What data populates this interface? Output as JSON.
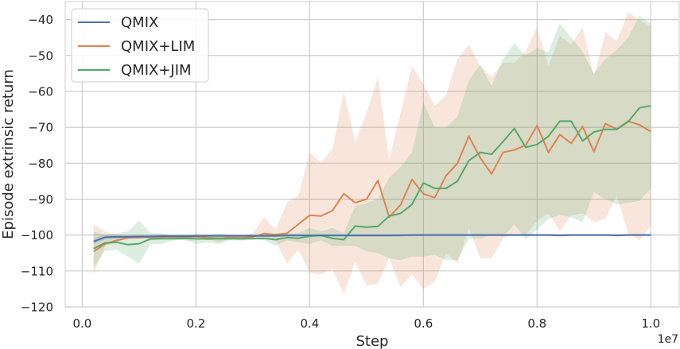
{
  "chart_data": {
    "type": "line",
    "title": "",
    "xlabel": "Step",
    "ylabel": "Episode extrinsic return",
    "x_offset_label": "1e7",
    "xlim": [
      -0.03,
      1.05
    ],
    "ylim": [
      -120,
      -35
    ],
    "xticks": [
      0.0,
      0.2,
      0.4,
      0.6,
      0.8,
      1.0
    ],
    "xtick_labels": [
      "0.0",
      "0.2",
      "0.4",
      "0.6",
      "0.8",
      "1.0"
    ],
    "yticks": [
      -120,
      -110,
      -100,
      -90,
      -80,
      -70,
      -60,
      -50,
      -40
    ],
    "ytick_labels": [
      "−120",
      "−110",
      "−100",
      "−90",
      "−80",
      "−70",
      "−60",
      "−50",
      "−40"
    ],
    "grid": true,
    "legend_position": "top-left",
    "x": [
      0.02,
      0.04,
      0.06,
      0.08,
      0.1,
      0.12,
      0.14,
      0.16,
      0.18,
      0.2,
      0.22,
      0.24,
      0.26,
      0.28,
      0.3,
      0.32,
      0.34,
      0.36,
      0.38,
      0.4,
      0.42,
      0.44,
      0.46,
      0.48,
      0.5,
      0.52,
      0.54,
      0.56,
      0.58,
      0.6,
      0.62,
      0.64,
      0.66,
      0.68,
      0.7,
      0.72,
      0.74,
      0.76,
      0.78,
      0.8,
      0.82,
      0.84,
      0.86,
      0.88,
      0.9,
      0.92,
      0.94,
      0.96,
      0.98,
      1.0
    ],
    "series": [
      {
        "name": "QMIX",
        "color": "#4c72b0",
        "values": [
          -101.8,
          -100.6,
          -100.5,
          -100.5,
          -100.4,
          -100.4,
          -100.3,
          -100.3,
          -100.3,
          -100.3,
          -100.2,
          -100.2,
          -100.2,
          -100.2,
          -100.2,
          -100.2,
          -100.2,
          -100.1,
          -100.1,
          -100.1,
          -100.1,
          -100.1,
          -100.1,
          -100.1,
          -100.1,
          -100.1,
          -100.1,
          -100.1,
          -100.0,
          -100.0,
          -100.0,
          -100.0,
          -100.0,
          -100.0,
          -100.0,
          -100.0,
          -100.0,
          -100.0,
          -100.0,
          -100.0,
          -100.0,
          -100.1,
          -100.0,
          -100.0,
          -100.0,
          -100.0,
          -100.1,
          -100.0,
          -100.0,
          -100.0
        ],
        "lower": [
          -102.5,
          -101.2,
          -101.0,
          -101.0,
          -100.9,
          -100.8,
          -100.7,
          -100.7,
          -100.6,
          -100.6,
          -100.5,
          -100.5,
          -100.5,
          -100.5,
          -100.5,
          -100.5,
          -100.5,
          -100.4,
          -100.4,
          -100.4,
          -100.4,
          -100.4,
          -100.4,
          -100.4,
          -100.4,
          -100.4,
          -100.4,
          -100.3,
          -100.3,
          -100.3,
          -100.3,
          -100.3,
          -100.3,
          -100.3,
          -100.3,
          -100.3,
          -100.3,
          -100.3,
          -100.3,
          -100.3,
          -100.3,
          -100.3,
          -100.3,
          -100.3,
          -100.3,
          -100.3,
          -100.3,
          -100.3,
          -100.3,
          -100.3
        ],
        "upper": [
          -101.0,
          -100.0,
          -100.0,
          -100.0,
          -99.9,
          -99.9,
          -99.9,
          -99.9,
          -99.9,
          -99.9,
          -99.9,
          -99.9,
          -99.9,
          -99.9,
          -99.9,
          -99.9,
          -99.9,
          -99.8,
          -99.8,
          -99.8,
          -99.8,
          -99.8,
          -99.8,
          -99.8,
          -99.8,
          -99.8,
          -99.8,
          -99.7,
          -99.7,
          -99.7,
          -99.7,
          -99.7,
          -99.7,
          -99.7,
          -99.7,
          -99.7,
          -99.7,
          -99.7,
          -99.7,
          -99.7,
          -99.7,
          -99.7,
          -99.7,
          -99.7,
          -99.7,
          -99.7,
          -99.7,
          -99.7,
          -99.7,
          -99.7
        ]
      },
      {
        "name": "QMIX+LIM",
        "color": "#dd8452",
        "values": [
          -104.6,
          -102.5,
          -101.5,
          -100.8,
          -100.7,
          -100.6,
          -100.6,
          -100.5,
          -100.6,
          -100.4,
          -100.7,
          -100.9,
          -100.7,
          -100.8,
          -100.5,
          -99.6,
          -99.9,
          -99.5,
          -97.0,
          -94.5,
          -94.7,
          -93.2,
          -88.5,
          -91.0,
          -90.0,
          -84.8,
          -95.0,
          -91.6,
          -84.5,
          -88.5,
          -89.6,
          -83.5,
          -80.0,
          -72.5,
          -78.5,
          -83.0,
          -77.0,
          -76.3,
          -75.0,
          -69.5,
          -77.0,
          -72.0,
          -74.5,
          -69.8,
          -76.8,
          -69.0,
          -70.5,
          -68.3,
          -69.3,
          -71.2
        ],
        "lower": [
          -111.0,
          -103.0,
          -102.0,
          -101.0,
          -101.0,
          -101.0,
          -101.0,
          -101.0,
          -101.5,
          -101.5,
          -101.0,
          -102.0,
          -101.0,
          -101.5,
          -101.0,
          -100.5,
          -101.5,
          -108.0,
          -104.0,
          -110.5,
          -111.0,
          -109.5,
          -116.5,
          -107.5,
          -114.0,
          -113.5,
          -106.5,
          -114.5,
          -111.0,
          -115.0,
          -113.0,
          -105.0,
          -108.0,
          -98.0,
          -106.5,
          -106.5,
          -101.0,
          -99.5,
          -100.0,
          -96.0,
          -94.0,
          -99.0,
          -94.5,
          -94.0,
          -96.5,
          -95.5,
          -89.0,
          -99.5,
          -101.5,
          -97.5
        ],
        "upper": [
          -97.0,
          -99.0,
          -100.0,
          -100.5,
          -100.2,
          -100.2,
          -100.2,
          -100.2,
          -100.0,
          -100.0,
          -100.0,
          -100.0,
          -100.0,
          -100.3,
          -99.5,
          -95.0,
          -98.5,
          -91.0,
          -89.0,
          -77.0,
          -80.0,
          -76.0,
          -60.0,
          -74.0,
          -66.0,
          -56.0,
          -79.0,
          -66.0,
          -53.0,
          -58.0,
          -64.0,
          -61.0,
          -51.0,
          -47.0,
          -53.0,
          -56.0,
          -52.0,
          -52.0,
          -49.0,
          -42.0,
          -53.0,
          -44.5,
          -47.0,
          -42.0,
          -56.0,
          -43.5,
          -46.0,
          -38.0,
          -40.0,
          -42.0
        ]
      },
      {
        "name": "QMIX+JIM",
        "color": "#55a868",
        "values": [
          -103.8,
          -102.2,
          -102.0,
          -102.7,
          -102.4,
          -101.1,
          -101.0,
          -101.0,
          -100.9,
          -101.0,
          -101.1,
          -101.0,
          -101.0,
          -101.0,
          -101.0,
          -100.9,
          -101.3,
          -100.7,
          -100.9,
          -100.3,
          -100.1,
          -100.9,
          -101.3,
          -97.5,
          -97.8,
          -97.6,
          -94.7,
          -94.0,
          -91.5,
          -85.5,
          -87.0,
          -87.0,
          -85.0,
          -79.3,
          -77.0,
          -77.5,
          -74.0,
          -70.3,
          -75.6,
          -74.8,
          -72.5,
          -68.3,
          -68.3,
          -73.8,
          -71.3,
          -70.6,
          -70.6,
          -68.5,
          -64.6,
          -64.0
        ],
        "lower": [
          -109.0,
          -104.5,
          -104.0,
          -106.0,
          -108.0,
          -102.5,
          -102.5,
          -101.5,
          -101.3,
          -102.5,
          -102.0,
          -102.5,
          -101.5,
          -101.5,
          -101.0,
          -101.5,
          -103.0,
          -101.5,
          -102.0,
          -102.5,
          -101.5,
          -103.0,
          -103.0,
          -103.0,
          -104.5,
          -105.0,
          -106.5,
          -107.0,
          -106.0,
          -106.0,
          -105.5,
          -107.0,
          -107.0,
          -101.0,
          -101.0,
          -100.0,
          -100.5,
          -97.0,
          -101.0,
          -98.5,
          -95.5,
          -94.5,
          -95.0,
          -96.5,
          -88.0,
          -90.0,
          -91.5,
          -91.0,
          -90.5,
          -87.0
        ],
        "upper": [
          -99.0,
          -100.0,
          -99.5,
          -99.0,
          -96.0,
          -99.5,
          -99.5,
          -100.5,
          -100.5,
          -99.5,
          -100.0,
          -99.5,
          -100.0,
          -100.0,
          -100.5,
          -100.3,
          -99.5,
          -99.5,
          -99.5,
          -98.0,
          -99.0,
          -98.0,
          -99.5,
          -92.0,
          -91.0,
          -90.0,
          -84.0,
          -81.0,
          -77.0,
          -63.0,
          -70.0,
          -70.0,
          -67.0,
          -57.0,
          -52.5,
          -58.5,
          -51.0,
          -46.5,
          -50.0,
          -48.0,
          -49.0,
          -41.0,
          -45.0,
          -49.0,
          -55.0,
          -51.0,
          -48.5,
          -45.0,
          -39.0,
          -41.0
        ]
      }
    ]
  }
}
